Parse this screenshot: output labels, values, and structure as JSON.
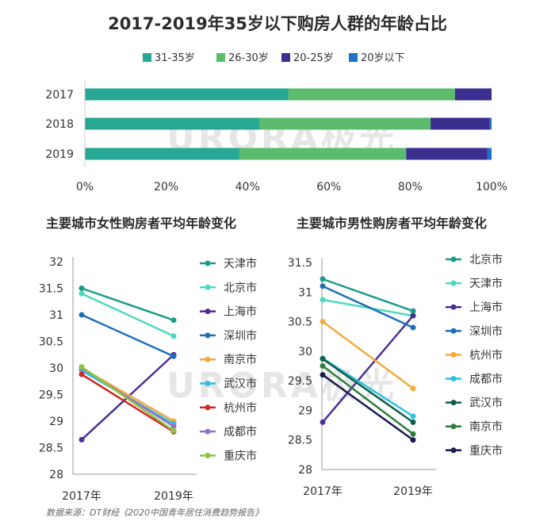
{
  "title": "2017-2019年35岁以下购房人群的年龄占比",
  "watermark": "URORA极光",
  "source": "数据来源：DT财经《2020中国青年居住消费趋势报告》",
  "colors": {
    "31-35岁": "#26a894",
    "26-30岁": "#5cbc6e",
    "20-25岁": "#3a2e8f",
    "20岁以下": "#1e73c8"
  },
  "chart_data": [
    {
      "type": "bar",
      "orientation": "horizontal",
      "stacked": true,
      "title": "",
      "categories": [
        "2017",
        "2018",
        "2019"
      ],
      "series": [
        {
          "name": "31-35岁",
          "values": [
            50,
            43,
            38
          ]
        },
        {
          "name": "26-30岁",
          "values": [
            41,
            42,
            41
          ]
        },
        {
          "name": "20-25岁",
          "values": [
            9,
            14.5,
            20
          ]
        },
        {
          "name": "20岁以下",
          "values": [
            0,
            0.5,
            1
          ]
        }
      ],
      "xlim": [
        0,
        100
      ],
      "xticks": [
        "0%",
        "20%",
        "40%",
        "60%",
        "80%",
        "100%"
      ],
      "legend": "top"
    },
    {
      "type": "line",
      "title": "主要城市女性购房者平均年龄变化",
      "x": [
        "2017年",
        "2019年"
      ],
      "ylim": [
        28,
        32
      ],
      "yticks": [
        "28",
        "28.5",
        "29",
        "29.5",
        "30",
        "30.5",
        "31",
        "31.5",
        "32"
      ],
      "legend": "right",
      "series": [
        {
          "name": "天津市",
          "values": [
            31.5,
            30.9
          ],
          "color": "#1a9b8a"
        },
        {
          "name": "北京市",
          "values": [
            31.4,
            30.6
          ],
          "color": "#4cd9bf"
        },
        {
          "name": "上海市",
          "values": [
            28.65,
            30.25
          ],
          "color": "#4b2e94"
        },
        {
          "name": "深圳市",
          "values": [
            31.0,
            30.22
          ],
          "color": "#1e6fb8"
        },
        {
          "name": "南京市",
          "values": [
            30.0,
            29.0
          ],
          "color": "#f3a93b"
        },
        {
          "name": "武汉市",
          "values": [
            29.95,
            28.95
          ],
          "color": "#2cc1e0"
        },
        {
          "name": "杭州市",
          "values": [
            29.88,
            28.8
          ],
          "color": "#d42424"
        },
        {
          "name": "成都市",
          "values": [
            30.0,
            28.9
          ],
          "color": "#9272c8"
        },
        {
          "name": "重庆市",
          "values": [
            30.02,
            28.82
          ],
          "color": "#8cc63f"
        }
      ]
    },
    {
      "type": "line",
      "title": "主要城市男性购房者平均年龄变化",
      "x": [
        "2017年",
        "2019年"
      ],
      "ylim": [
        28,
        31.5
      ],
      "yticks": [
        "28",
        "28.5",
        "29",
        "29.5",
        "30",
        "30.5",
        "31",
        "31.5"
      ],
      "legend": "right",
      "series": [
        {
          "name": "北京市",
          "values": [
            31.22,
            30.68
          ],
          "color": "#1a9b8a"
        },
        {
          "name": "天津市",
          "values": [
            30.87,
            30.6
          ],
          "color": "#4cd9bf"
        },
        {
          "name": "上海市",
          "values": [
            28.8,
            30.6
          ],
          "color": "#4b2e94"
        },
        {
          "name": "深圳市",
          "values": [
            31.1,
            30.4
          ],
          "color": "#1e6fb8"
        },
        {
          "name": "杭州市",
          "values": [
            30.5,
            29.37
          ],
          "color": "#f3a93b"
        },
        {
          "name": "成都市",
          "values": [
            29.88,
            28.9
          ],
          "color": "#2cc1e0"
        },
        {
          "name": "武汉市",
          "values": [
            29.87,
            28.8
          ],
          "color": "#0e5e4a"
        },
        {
          "name": "南京市",
          "values": [
            29.75,
            28.6
          ],
          "color": "#2e7d3b"
        },
        {
          "name": "重庆市",
          "values": [
            29.6,
            28.5
          ],
          "color": "#1b1a4e"
        }
      ]
    }
  ]
}
